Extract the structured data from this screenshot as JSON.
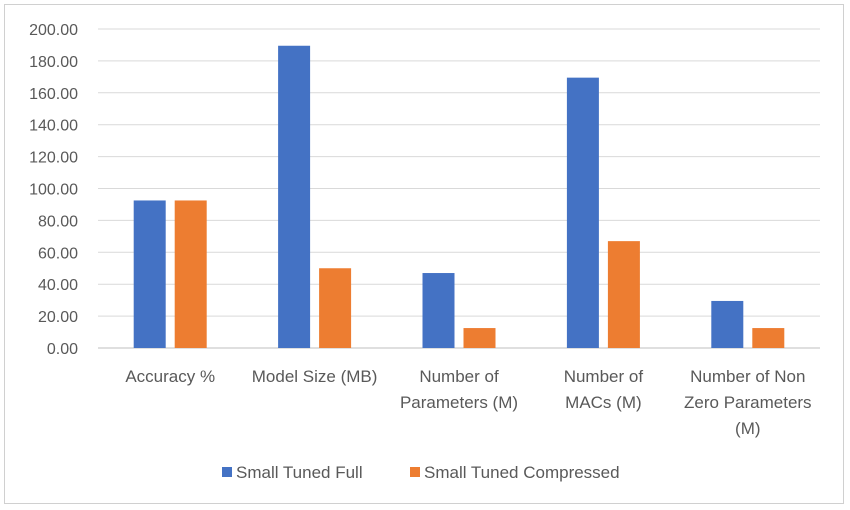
{
  "chart_data": {
    "type": "bar",
    "title": "",
    "xlabel": "",
    "ylabel": "",
    "ylim": [
      0,
      200
    ],
    "yticks": [
      0,
      20,
      40,
      60,
      80,
      100,
      120,
      140,
      160,
      180,
      200
    ],
    "ytick_labels": [
      "0.00",
      "20.00",
      "40.00",
      "60.00",
      "80.00",
      "100.00",
      "120.00",
      "140.00",
      "160.00",
      "180.00",
      "200.00"
    ],
    "categories": [
      [
        "Accuracy %"
      ],
      [
        "Model Size (MB)"
      ],
      [
        "Number of",
        "Parameters (M)"
      ],
      [
        "Number of",
        "MACs (M)"
      ],
      [
        "Number of Non",
        "Zero Parameters",
        "(M)"
      ]
    ],
    "series": [
      {
        "name": "Small Tuned Full",
        "color": "#4472C4",
        "values": [
          92.5,
          189.5,
          47.0,
          169.5,
          29.5
        ]
      },
      {
        "name": "Small Tuned Compressed",
        "color": "#ED7D31",
        "values": [
          92.5,
          50.0,
          12.5,
          67.0,
          12.5
        ]
      }
    ],
    "grid": true,
    "legend": "bottom"
  }
}
